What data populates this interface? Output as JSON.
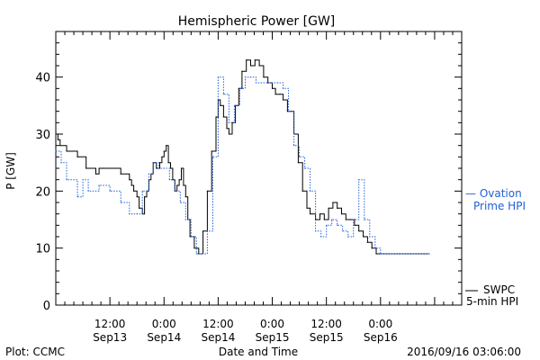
{
  "chart_data": {
    "type": "line",
    "title": "Hemispheric Power [GW]",
    "ylabel": "P [GW]",
    "xlabel": "Date and Time",
    "ylim": [
      0,
      48
    ],
    "xlim": [
      0,
      3.75
    ],
    "yticks": [
      0,
      10,
      20,
      30,
      40
    ],
    "xticks": [
      {
        "x": 0.5,
        "time": "12:00",
        "date": "Sep13"
      },
      {
        "x": 1.0,
        "time": "0:00",
        "date": "Sep14"
      },
      {
        "x": 1.5,
        "time": "12:00",
        "date": "Sep14"
      },
      {
        "x": 2.0,
        "time": "0:00",
        "date": "Sep15"
      },
      {
        "x": 2.5,
        "time": "12:00",
        "date": "Sep15"
      },
      {
        "x": 3.0,
        "time": "0:00",
        "date": "Sep16"
      }
    ],
    "series": [
      {
        "name": "SWPC 5-min HPI",
        "color": "#000000",
        "style": "solid",
        "x": [
          0.0,
          0.02,
          0.04,
          0.1,
          0.2,
          0.28,
          0.36,
          0.37,
          0.4,
          0.43,
          0.44,
          0.47,
          0.55,
          0.6,
          0.68,
          0.7,
          0.72,
          0.75,
          0.77,
          0.8,
          0.82,
          0.84,
          0.86,
          0.88,
          0.9,
          0.93,
          0.96,
          0.98,
          1.0,
          1.02,
          1.04,
          1.06,
          1.08,
          1.1,
          1.12,
          1.14,
          1.16,
          1.18,
          1.2,
          1.22,
          1.24,
          1.28,
          1.32,
          1.36,
          1.4,
          1.44,
          1.48,
          1.5,
          1.52,
          1.55,
          1.58,
          1.6,
          1.63,
          1.66,
          1.69,
          1.72,
          1.76,
          1.8,
          1.84,
          1.88,
          1.92,
          1.96,
          2.0,
          2.03,
          2.07,
          2.1,
          2.14,
          2.2,
          2.24,
          2.28,
          2.32,
          2.35,
          2.4,
          2.44,
          2.48,
          2.52,
          2.56,
          2.6,
          2.64,
          2.68,
          2.72,
          2.76,
          2.8,
          2.84,
          2.88,
          2.92,
          2.96,
          3.0,
          3.1,
          3.2,
          3.3,
          3.45
        ],
        "y": [
          30,
          29,
          28,
          27,
          26,
          24,
          24,
          23,
          24,
          24,
          24,
          24,
          24,
          23,
          22,
          21,
          20,
          19,
          17,
          16,
          19,
          20,
          22,
          23,
          25,
          24,
          25,
          26,
          27,
          28,
          25,
          24,
          22,
          20,
          21,
          22,
          24,
          21,
          19,
          15,
          12,
          10,
          9,
          13,
          20,
          27,
          33,
          36,
          35,
          33,
          31,
          30,
          32,
          35,
          38,
          41,
          43,
          42,
          43,
          42,
          40,
          39,
          38,
          37,
          37,
          36,
          34,
          30,
          25,
          20,
          17,
          16,
          15,
          16,
          15,
          17,
          18,
          17,
          16,
          15,
          15,
          14,
          13,
          12,
          11,
          10,
          9,
          9,
          9,
          9,
          9,
          9
        ]
      },
      {
        "name": "Ovation Prime HPI",
        "color": "#1f5fd8",
        "style": "dotted",
        "x": [
          0.0,
          0.05,
          0.1,
          0.2,
          0.25,
          0.3,
          0.4,
          0.5,
          0.6,
          0.68,
          0.75,
          0.8,
          0.86,
          0.9,
          0.95,
          1.0,
          1.05,
          1.1,
          1.15,
          1.2,
          1.25,
          1.3,
          1.35,
          1.4,
          1.45,
          1.5,
          1.55,
          1.6,
          1.65,
          1.7,
          1.75,
          1.8,
          1.85,
          1.9,
          1.95,
          2.0,
          2.05,
          2.1,
          2.15,
          2.2,
          2.25,
          2.3,
          2.35,
          2.4,
          2.45,
          2.5,
          2.55,
          2.6,
          2.65,
          2.7,
          2.75,
          2.8,
          2.85,
          2.9,
          2.95,
          3.0,
          3.1,
          3.2,
          3.3,
          3.45
        ],
        "y": [
          27,
          25,
          22,
          19,
          22,
          20,
          21,
          20,
          18,
          16,
          16,
          20,
          23,
          25,
          24,
          24,
          22,
          20,
          18,
          15,
          12,
          9,
          9,
          13,
          26,
          40,
          37,
          32,
          35,
          38,
          40,
          40,
          39,
          39,
          39,
          39,
          39,
          38,
          34,
          28,
          26,
          24,
          20,
          13,
          12,
          14,
          15,
          14,
          13,
          12,
          15,
          22,
          15,
          12,
          10,
          9,
          9,
          9,
          9,
          9
        ]
      }
    ],
    "legend": [
      {
        "label_lines": [
          "— Ovation",
          "Prime HPI"
        ],
        "color": "#1f5fd8"
      },
      {
        "label_lines": [
          "SWPC",
          "5-min HPI"
        ],
        "color": "#000000"
      }
    ]
  },
  "footer": {
    "left": "Plot: CCMC",
    "center": "Date and Time",
    "right": "2016/09/16 03:06:00"
  }
}
